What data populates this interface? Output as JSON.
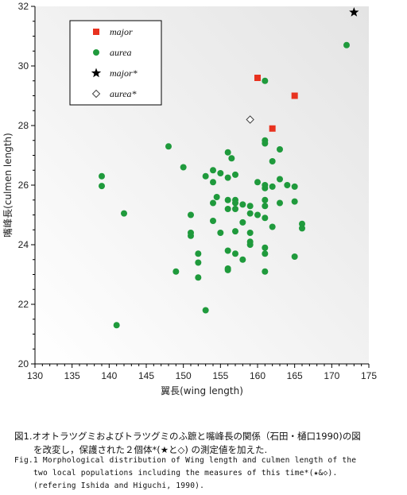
{
  "chart_data": {
    "type": "scatter",
    "xlabel": "翼長(wing length)",
    "ylabel": "嘴峰長(culmen length)",
    "xlim": [
      130,
      175
    ],
    "ylim": [
      20,
      32
    ],
    "x_ticks": [
      "130",
      "135",
      "140",
      "145",
      "150",
      "155",
      "160",
      "165",
      "170",
      "175"
    ],
    "y_ticks": [
      "20",
      "22",
      "24",
      "26",
      "28",
      "30",
      "32"
    ],
    "legend_position": "top-left",
    "series": [
      {
        "name": "major",
        "marker": "square",
        "color": "#e8321f",
        "points": [
          [
            160,
            29.6
          ],
          [
            165,
            29.0
          ],
          [
            162,
            27.9
          ]
        ]
      },
      {
        "name": "aurea",
        "marker": "circle",
        "color": "#1f9a3c",
        "points": [
          [
            172,
            30.7
          ],
          [
            161,
            29.5
          ],
          [
            148,
            27.3
          ],
          [
            156,
            27.1
          ],
          [
            161,
            27.5
          ],
          [
            161,
            27.4
          ],
          [
            163,
            27.2
          ],
          [
            156.5,
            26.9
          ],
          [
            162,
            26.8
          ],
          [
            150,
            26.6
          ],
          [
            154,
            26.5
          ],
          [
            153,
            26.3
          ],
          [
            155,
            26.4
          ],
          [
            157,
            26.35
          ],
          [
            156,
            26.25
          ],
          [
            139,
            26.3
          ],
          [
            139,
            25.97
          ],
          [
            154,
            26.1
          ],
          [
            160,
            26.1
          ],
          [
            161,
            26.0
          ],
          [
            161,
            25.9
          ],
          [
            162,
            25.95
          ],
          [
            163,
            26.2
          ],
          [
            164,
            26.0
          ],
          [
            165,
            25.95
          ],
          [
            154.5,
            25.6
          ],
          [
            154,
            25.4
          ],
          [
            156,
            25.5
          ],
          [
            157,
            25.5
          ],
          [
            157,
            25.4
          ],
          [
            158,
            25.35
          ],
          [
            159,
            25.3
          ],
          [
            161,
            25.5
          ],
          [
            161,
            25.3
          ],
          [
            163,
            25.4
          ],
          [
            165,
            25.45
          ],
          [
            156,
            25.2
          ],
          [
            157,
            25.2
          ],
          [
            159,
            25.05
          ],
          [
            160,
            25.0
          ],
          [
            161,
            24.9
          ],
          [
            151,
            25.0
          ],
          [
            154,
            24.8
          ],
          [
            142,
            25.05
          ],
          [
            158,
            24.75
          ],
          [
            162,
            24.6
          ],
          [
            166,
            24.7
          ],
          [
            166,
            24.55
          ],
          [
            157,
            24.45
          ],
          [
            159,
            24.4
          ],
          [
            151,
            24.4
          ],
          [
            151,
            24.3
          ],
          [
            155,
            24.4
          ],
          [
            159,
            24.1
          ],
          [
            159,
            24.0
          ],
          [
            161,
            23.9
          ],
          [
            156,
            23.8
          ],
          [
            157,
            23.7
          ],
          [
            152,
            23.7
          ],
          [
            161,
            23.7
          ],
          [
            165,
            23.6
          ],
          [
            158,
            23.5
          ],
          [
            152,
            23.4
          ],
          [
            156,
            23.2
          ],
          [
            156,
            23.15
          ],
          [
            149,
            23.1
          ],
          [
            161,
            23.1
          ],
          [
            152,
            22.9
          ],
          [
            153,
            21.8
          ],
          [
            141,
            21.3
          ]
        ]
      },
      {
        "name": "major*",
        "marker": "star",
        "color": "#000000",
        "points": [
          [
            173,
            31.8
          ]
        ]
      },
      {
        "name": "aurea*",
        "marker": "diamond",
        "color": "#444444",
        "points": [
          [
            159,
            28.2
          ]
        ]
      }
    ]
  },
  "caption": {
    "jp_line1": "図1.オオトラツグミおよびトラツグミのふ蹠と嘴峰長の関係（石田・樋口1990)の図",
    "jp_line2": "を改変し，保護された２個体*(★と◇) の測定値を加えた.",
    "en_line1": "Fig.1 Morphological distribution of Wing length and culmen length of the",
    "en_line2": "two local populations including the measures of this time*(★&◇).",
    "en_line3": "(refering Ishida and Higuchi, 1990)."
  }
}
